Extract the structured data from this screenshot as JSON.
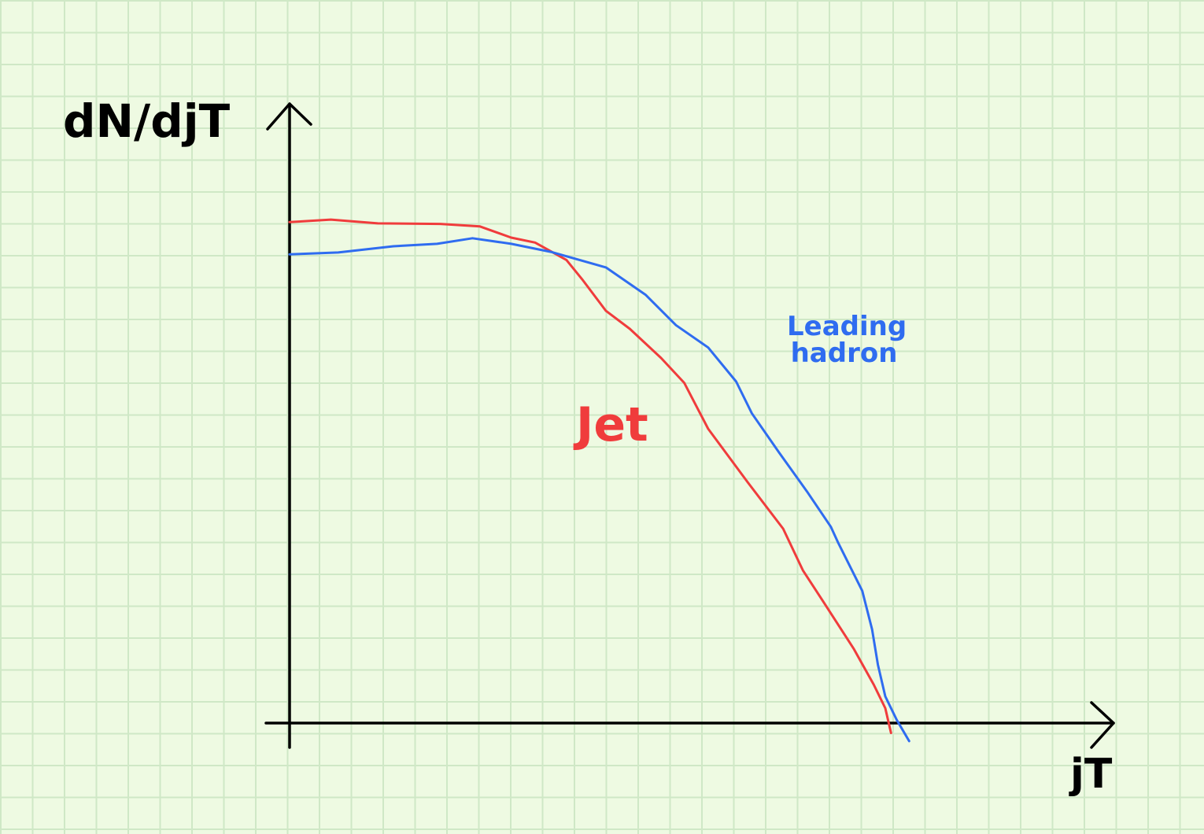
{
  "chart_data": {
    "type": "line",
    "ylabel": "dN/djT",
    "xlabel": "jT",
    "xlim": [
      0,
      100
    ],
    "ylim": [
      0,
      100
    ],
    "series": [
      {
        "name": "Jet",
        "color": "#f03c3c",
        "x": [
          0,
          5.0,
          10.7,
          18.3,
          23.1,
          26.9,
          29.8,
          33.6,
          35.5,
          38.4,
          41.3,
          45.1,
          47.9,
          50.8,
          55.6,
          59.9,
          62.3,
          65.1,
          68.5,
          70.9,
          72.3,
          73.0
        ],
        "values": [
          80.7,
          81.1,
          80.5,
          80.4,
          80.0,
          78.2,
          77.4,
          74.6,
          71.5,
          66.4,
          63.5,
          58.8,
          54.8,
          47.4,
          38.8,
          31.3,
          24.6,
          18.9,
          11.9,
          6.2,
          2.4,
          -1.6
        ]
      },
      {
        "name": "Leading hadron",
        "color": "#2f6cf0",
        "x": [
          0,
          5.9,
          12.6,
          17.9,
          22.2,
          26.9,
          31.7,
          38.4,
          43.2,
          46.9,
          50.8,
          54.2,
          56.1,
          59.4,
          62.8,
          65.7,
          66.6,
          69.5,
          70.7,
          71.4,
          72.3,
          73.7,
          75.2
        ],
        "values": [
          75.5,
          75.8,
          76.8,
          77.2,
          78.1,
          77.2,
          75.9,
          73.4,
          69.0,
          64.1,
          60.5,
          55.0,
          49.9,
          43.6,
          37.3,
          31.6,
          29.0,
          21.3,
          15.1,
          9.4,
          4.3,
          0.5,
          -2.9
        ]
      }
    ]
  }
}
